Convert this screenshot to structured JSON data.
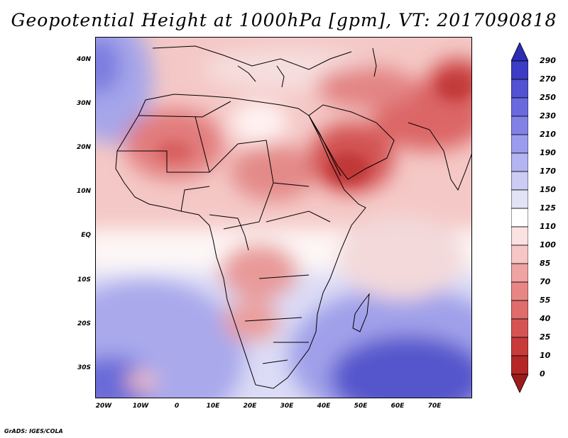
{
  "title": "Geopotential Height at 1000hPa [gpm], VT: 2017090818",
  "credit": "GrADS: IGES/COLA",
  "map": {
    "lat_labels": [
      "40N",
      "30N",
      "20N",
      "10N",
      "EQ",
      "10S",
      "20S",
      "30S"
    ],
    "lon_labels": [
      "20W",
      "10W",
      "0",
      "10E",
      "20E",
      "30E",
      "40E",
      "50E",
      "60E",
      "70E"
    ]
  },
  "colorbar": {
    "labels": [
      "290",
      "270",
      "250",
      "230",
      "210",
      "190",
      "170",
      "150",
      "125",
      "110",
      "100",
      "85",
      "70",
      "55",
      "40",
      "25",
      "10",
      "0"
    ],
    "colors": [
      "#9e1b1b",
      "#b52727",
      "#c93a3a",
      "#d65353",
      "#e06c6c",
      "#e88686",
      "#efa3a3",
      "#f6c6c6",
      "#fbe2e2",
      "#ffffff",
      "#e3e3f6",
      "#cbcbf3",
      "#b4b4f2",
      "#9c9cee",
      "#8282e6",
      "#6a6ade",
      "#5252d2",
      "#3c3cc4",
      "#2c2cb4"
    ]
  }
}
